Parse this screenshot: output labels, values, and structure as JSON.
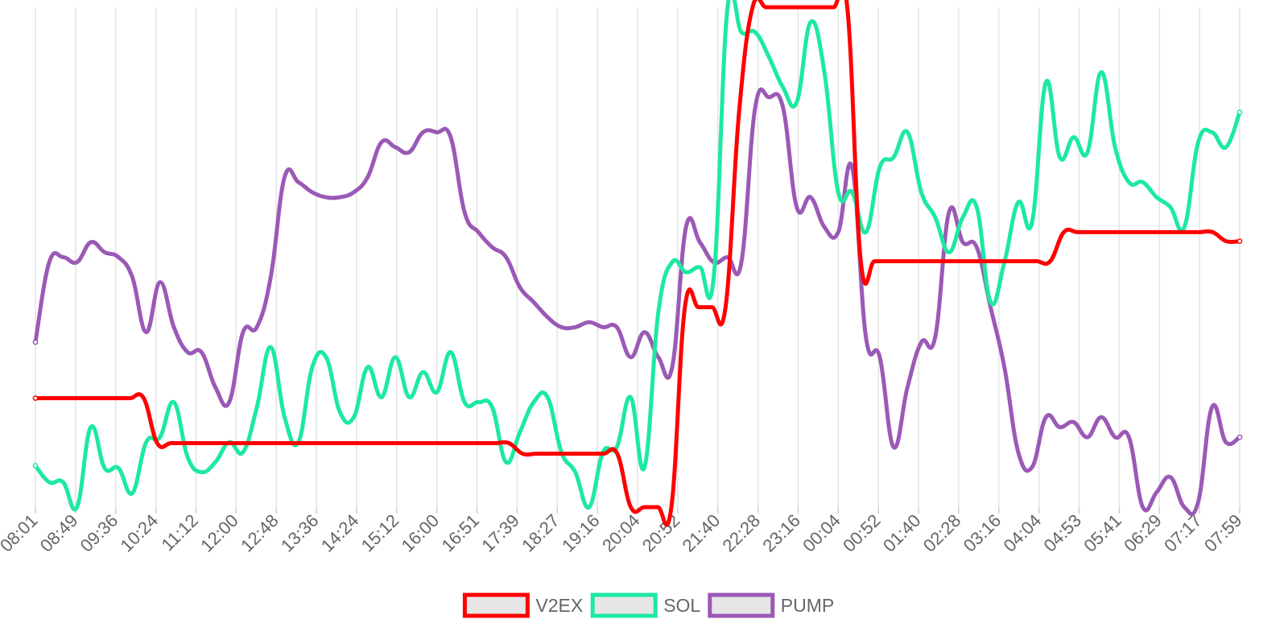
{
  "chart_data": {
    "type": "line",
    "title": "",
    "xlabel": "",
    "ylabel": "",
    "grid": {
      "vertical": true,
      "horizontal": false
    },
    "legend_position": "bottom",
    "x_tick_labels": [
      "08:01",
      "08:49",
      "09:36",
      "10:24",
      "11:12",
      "12:00",
      "12:48",
      "13:36",
      "14:24",
      "15:12",
      "16:00",
      "16:51",
      "17:39",
      "18:27",
      "19:16",
      "20:04",
      "20:52",
      "21:40",
      "22:28",
      "23:16",
      "00:04",
      "00:52",
      "01:40",
      "02:28",
      "03:16",
      "04:04",
      "04:53",
      "05:41",
      "06:29",
      "07:17",
      "07:59"
    ],
    "y_axis_labels_shown": false,
    "value_scale": "relative (0 = bottom of plot, 1 = top of plot); no y-axis labels are shown",
    "series": [
      {
        "name": "V2EX",
        "color": "#ff0000",
        "values": [
          0.218,
          0.218,
          0.218,
          0.218,
          0.218,
          0.218,
          0.218,
          0.218,
          0.218,
          0.128,
          0.128,
          0.128,
          0.128,
          0.128,
          0.128,
          0.128,
          0.128,
          0.128,
          0.128,
          0.128,
          0.128,
          0.128,
          0.128,
          0.128,
          0.128,
          0.128,
          0.128,
          0.128,
          0.128,
          0.128,
          0.128,
          0.128,
          0.128,
          0.128,
          0.128,
          0.128,
          0.107,
          0.107,
          0.107,
          0.107,
          0.107,
          0.107,
          0.107,
          0.107,
          0.0,
          0.0,
          0.0,
          0.0,
          0.4,
          0.4,
          0.4,
          0.4,
          0.79,
          1.0,
          1.0,
          1.0,
          1.0,
          1.0,
          1.0,
          1.0,
          1.0,
          0.492,
          0.492,
          0.492,
          0.492,
          0.492,
          0.492,
          0.492,
          0.492,
          0.492,
          0.492,
          0.492,
          0.492,
          0.492,
          0.492,
          0.492,
          0.55,
          0.55,
          0.55,
          0.55,
          0.55,
          0.55,
          0.55,
          0.55,
          0.55,
          0.55,
          0.55,
          0.55,
          0.532,
          0.532
        ]
      },
      {
        "name": "SOL",
        "color": "#1de9a0",
        "values": [
          0.083,
          0.05,
          0.05,
          0.0,
          0.16,
          0.078,
          0.078,
          0.028,
          0.13,
          0.14,
          0.21,
          0.1,
          0.07,
          0.09,
          0.13,
          0.11,
          0.2,
          0.32,
          0.18,
          0.13,
          0.28,
          0.3,
          0.19,
          0.18,
          0.28,
          0.22,
          0.3,
          0.22,
          0.27,
          0.23,
          0.31,
          0.21,
          0.21,
          0.2,
          0.09,
          0.15,
          0.21,
          0.22,
          0.11,
          0.07,
          0.0,
          0.11,
          0.12,
          0.22,
          0.08,
          0.39,
          0.49,
          0.47,
          0.48,
          0.46,
          1.0,
          0.95,
          0.95,
          0.9,
          0.84,
          0.81,
          0.97,
          0.87,
          0.63,
          0.63,
          0.55,
          0.68,
          0.7,
          0.75,
          0.63,
          0.58,
          0.51,
          0.58,
          0.6,
          0.41,
          0.49,
          0.61,
          0.57,
          0.85,
          0.7,
          0.74,
          0.71,
          0.87,
          0.72,
          0.65,
          0.65,
          0.62,
          0.6,
          0.56,
          0.73,
          0.75,
          0.72,
          0.79
        ]
      },
      {
        "name": "PUMP",
        "color": "#9b59b6",
        "values": [
          0.33,
          0.49,
          0.5,
          0.49,
          0.53,
          0.51,
          0.5,
          0.46,
          0.35,
          0.45,
          0.36,
          0.31,
          0.31,
          0.24,
          0.21,
          0.35,
          0.36,
          0.46,
          0.66,
          0.65,
          0.63,
          0.62,
          0.62,
          0.63,
          0.66,
          0.73,
          0.72,
          0.71,
          0.75,
          0.75,
          0.74,
          0.59,
          0.55,
          0.52,
          0.5,
          0.44,
          0.41,
          0.38,
          0.36,
          0.36,
          0.37,
          0.36,
          0.36,
          0.3,
          0.35,
          0.3,
          0.28,
          0.56,
          0.53,
          0.49,
          0.5,
          0.49,
          0.8,
          0.82,
          0.8,
          0.6,
          0.62,
          0.56,
          0.55,
          0.68,
          0.34,
          0.3,
          0.12,
          0.24,
          0.33,
          0.34,
          0.59,
          0.53,
          0.52,
          0.4,
          0.28,
          0.11,
          0.08,
          0.18,
          0.16,
          0.17,
          0.14,
          0.18,
          0.14,
          0.14,
          0.0,
          0.03,
          0.06,
          0.0,
          0.01,
          0.2,
          0.13,
          0.14
        ]
      }
    ],
    "legend": [
      "V2EX",
      "SOL",
      "PUMP"
    ]
  }
}
